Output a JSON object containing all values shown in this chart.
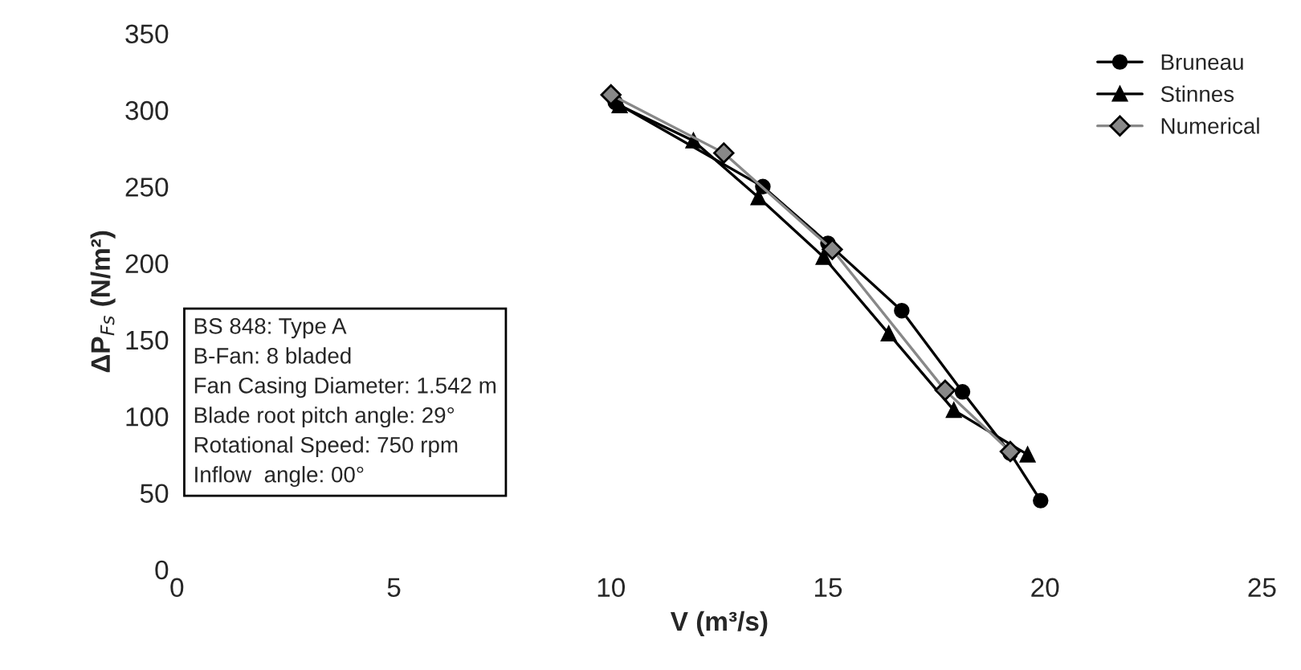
{
  "chart_data": {
    "type": "line",
    "xlabel": "V (m³/s)",
    "ylabel": "ΔP$_{Fs}$ (N/m²)",
    "xlim": [
      0,
      25
    ],
    "xticks": [
      0,
      5,
      10,
      15,
      20,
      25
    ],
    "ylim": [
      0,
      350
    ],
    "yticks": [
      0,
      50,
      100,
      150,
      200,
      250,
      300,
      350
    ],
    "grid": false,
    "legend": "top right",
    "series": [
      {
        "name": "Bruneau",
        "color": "#000000",
        "marker": "circle",
        "x": [
          10.1,
          13.5,
          15.0,
          16.7,
          18.1,
          19.2,
          19.9
        ],
        "values": [
          305,
          250,
          213,
          169,
          116,
          76,
          45
        ]
      },
      {
        "name": "Stinnes",
        "color": "#000000",
        "marker": "triangle",
        "x": [
          10.2,
          11.9,
          13.4,
          14.9,
          16.4,
          17.9,
          19.6
        ],
        "values": [
          303,
          280,
          243,
          204,
          154,
          104,
          75
        ]
      },
      {
        "name": "Numerical",
        "color": "#888888",
        "marker": "diamond",
        "x": [
          10.0,
          12.6,
          15.1,
          17.7,
          19.2
        ],
        "values": [
          310,
          272,
          209,
          117,
          77
        ]
      }
    ],
    "annotations": [
      "BS 848: Type A",
      "B-Fan: 8 bladed",
      "Fan Casing Diameter: 1.542 m",
      "Blade root pitch angle: 29°",
      "Rotational Speed: 750 rpm",
      "Inflow  angle: 00°"
    ]
  }
}
